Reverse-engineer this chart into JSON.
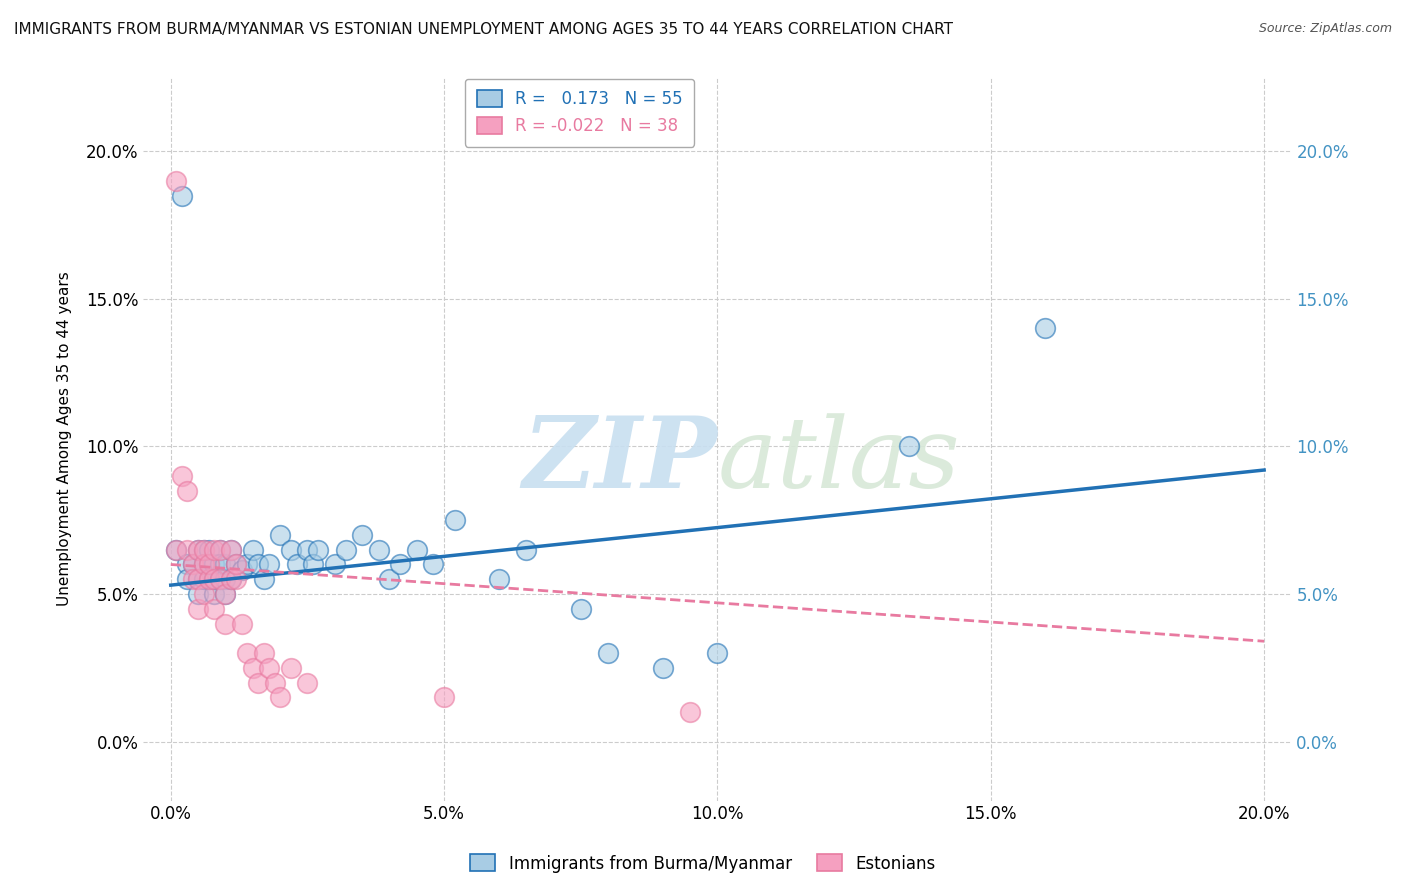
{
  "title": "IMMIGRANTS FROM BURMA/MYANMAR VS ESTONIAN UNEMPLOYMENT AMONG AGES 35 TO 44 YEARS CORRELATION CHART",
  "source": "Source: ZipAtlas.com",
  "ylabel": "Unemployment Among Ages 35 to 44 years",
  "watermark": "ZIPatlas",
  "xlim": [
    -0.005,
    0.205
  ],
  "ylim": [
    -0.02,
    0.225
  ],
  "yticks": [
    0.0,
    0.05,
    0.1,
    0.15,
    0.2
  ],
  "ytick_labels": [
    "0.0%",
    "5.0%",
    "10.0%",
    "15.0%",
    "20.0%"
  ],
  "xticks": [
    0.0,
    0.05,
    0.1,
    0.15,
    0.2
  ],
  "xtick_labels": [
    "0.0%",
    "5.0%",
    "10.0%",
    "15.0%",
    "20.0%"
  ],
  "legend_blue_r": "0.173",
  "legend_blue_n": "55",
  "legend_pink_r": "-0.022",
  "legend_pink_n": "38",
  "blue_color": "#a8cce4",
  "pink_color": "#f5a0c0",
  "blue_line_color": "#2171b5",
  "pink_line_color": "#e87aa0",
  "right_axis_color": "#4393c3",
  "background_color": "#ffffff",
  "grid_color": "#cccccc",
  "blue_scatter": [
    [
      0.001,
      0.065
    ],
    [
      0.002,
      0.185
    ],
    [
      0.003,
      0.06
    ],
    [
      0.003,
      0.055
    ],
    [
      0.004,
      0.06
    ],
    [
      0.005,
      0.055
    ],
    [
      0.005,
      0.065
    ],
    [
      0.005,
      0.05
    ],
    [
      0.006,
      0.06
    ],
    [
      0.006,
      0.055
    ],
    [
      0.006,
      0.065
    ],
    [
      0.007,
      0.055
    ],
    [
      0.007,
      0.06
    ],
    [
      0.007,
      0.065
    ],
    [
      0.008,
      0.05
    ],
    [
      0.008,
      0.06
    ],
    [
      0.008,
      0.055
    ],
    [
      0.009,
      0.055
    ],
    [
      0.009,
      0.065
    ],
    [
      0.009,
      0.06
    ],
    [
      0.01,
      0.055
    ],
    [
      0.01,
      0.06
    ],
    [
      0.01,
      0.05
    ],
    [
      0.011,
      0.065
    ],
    [
      0.011,
      0.055
    ],
    [
      0.012,
      0.06
    ],
    [
      0.013,
      0.058
    ],
    [
      0.014,
      0.06
    ],
    [
      0.015,
      0.065
    ],
    [
      0.016,
      0.06
    ],
    [
      0.017,
      0.055
    ],
    [
      0.018,
      0.06
    ],
    [
      0.02,
      0.07
    ],
    [
      0.022,
      0.065
    ],
    [
      0.023,
      0.06
    ],
    [
      0.025,
      0.065
    ],
    [
      0.026,
      0.06
    ],
    [
      0.027,
      0.065
    ],
    [
      0.03,
      0.06
    ],
    [
      0.032,
      0.065
    ],
    [
      0.035,
      0.07
    ],
    [
      0.038,
      0.065
    ],
    [
      0.04,
      0.055
    ],
    [
      0.042,
      0.06
    ],
    [
      0.045,
      0.065
    ],
    [
      0.048,
      0.06
    ],
    [
      0.052,
      0.075
    ],
    [
      0.06,
      0.055
    ],
    [
      0.065,
      0.065
    ],
    [
      0.075,
      0.045
    ],
    [
      0.08,
      0.03
    ],
    [
      0.09,
      0.025
    ],
    [
      0.1,
      0.03
    ],
    [
      0.135,
      0.1
    ],
    [
      0.16,
      0.14
    ]
  ],
  "pink_scatter": [
    [
      0.001,
      0.19
    ],
    [
      0.001,
      0.065
    ],
    [
      0.002,
      0.09
    ],
    [
      0.003,
      0.085
    ],
    [
      0.003,
      0.065
    ],
    [
      0.004,
      0.06
    ],
    [
      0.004,
      0.055
    ],
    [
      0.005,
      0.065
    ],
    [
      0.005,
      0.055
    ],
    [
      0.005,
      0.045
    ],
    [
      0.006,
      0.06
    ],
    [
      0.006,
      0.05
    ],
    [
      0.006,
      0.065
    ],
    [
      0.007,
      0.055
    ],
    [
      0.007,
      0.06
    ],
    [
      0.008,
      0.045
    ],
    [
      0.008,
      0.055
    ],
    [
      0.008,
      0.065
    ],
    [
      0.009,
      0.055
    ],
    [
      0.009,
      0.065
    ],
    [
      0.01,
      0.05
    ],
    [
      0.01,
      0.04
    ],
    [
      0.011,
      0.055
    ],
    [
      0.011,
      0.065
    ],
    [
      0.012,
      0.055
    ],
    [
      0.012,
      0.06
    ],
    [
      0.013,
      0.04
    ],
    [
      0.014,
      0.03
    ],
    [
      0.015,
      0.025
    ],
    [
      0.016,
      0.02
    ],
    [
      0.017,
      0.03
    ],
    [
      0.018,
      0.025
    ],
    [
      0.019,
      0.02
    ],
    [
      0.02,
      0.015
    ],
    [
      0.022,
      0.025
    ],
    [
      0.025,
      0.02
    ],
    [
      0.05,
      0.015
    ],
    [
      0.095,
      0.01
    ]
  ],
  "blue_trend_x": [
    0.0,
    0.2
  ],
  "blue_trend_y": [
    0.053,
    0.092
  ],
  "pink_trend_x": [
    0.0,
    0.2
  ],
  "pink_trend_y": [
    0.06,
    0.034
  ]
}
